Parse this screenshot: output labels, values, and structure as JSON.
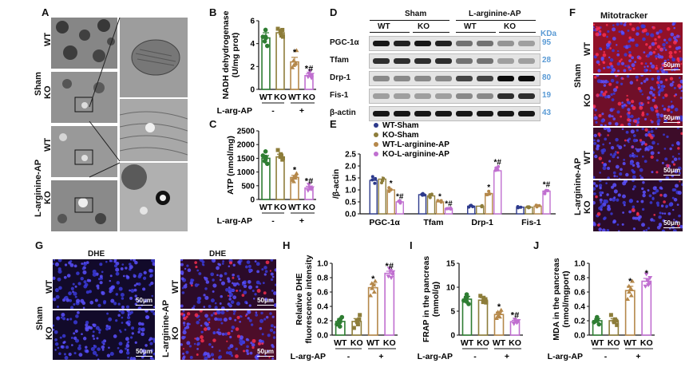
{
  "panel_letters": [
    "A",
    "B",
    "C",
    "D",
    "E",
    "F",
    "G",
    "H",
    "I",
    "J"
  ],
  "panelA": {
    "group_labels": [
      "Sham",
      "L-arginine-AP"
    ],
    "row_labels": [
      "WT",
      "KO",
      "WT",
      "KO"
    ]
  },
  "panelD": {
    "groups": [
      "Sham",
      "L-arginine-AP"
    ],
    "subgroups": [
      "WT",
      "KO",
      "WT",
      "KO"
    ],
    "unit_label": "KDa",
    "bands": [
      {
        "name": "PGC-1α",
        "kda": "95"
      },
      {
        "name": "Tfam",
        "kda": "28"
      },
      {
        "name": "Drp-1",
        "kda": "80"
      },
      {
        "name": "Fis-1",
        "kda": "19"
      },
      {
        "name": "β-actin",
        "kda": "43"
      }
    ]
  },
  "panelF": {
    "title": "Mitotracker",
    "group_labels": [
      "Sham",
      "L-arginine-AP"
    ],
    "row_labels": [
      "WT",
      "KO",
      "WT",
      "KO"
    ],
    "scale": "50μm"
  },
  "panelG": {
    "title_left": "DHE",
    "title_right": "DHE",
    "left_group": "Sham",
    "right_group": "L-arginine-AP",
    "row_labels": [
      "WT",
      "KO",
      "WT",
      "KO"
    ],
    "scale": "50μm"
  },
  "chart_data": [
    {
      "panel": "B",
      "type": "bar",
      "categories": [
        "WT",
        "KO",
        "WT",
        "KO"
      ],
      "values": [
        4.5,
        4.95,
        2.4,
        1.2
      ],
      "errors": [
        0.45,
        0.3,
        0.4,
        0.15
      ],
      "points": [
        [
          5.2,
          3.8,
          4.2,
          4.6,
          4.5,
          4.6
        ],
        [
          5.3,
          4.6,
          5.2,
          4.7,
          4.9,
          5.1
        ],
        [
          3.4,
          1.9,
          2.1,
          2.5,
          2.3,
          2.2
        ],
        [
          1.4,
          1.1,
          1.0,
          1.3,
          1.2,
          1.6
        ]
      ],
      "sig": [
        "",
        "",
        "*",
        "*#"
      ],
      "ylabel": "NADH dehydrogenase (U/mg prot)",
      "yticks": [
        "0",
        "2",
        "4",
        "6"
      ],
      "ylim": [
        0,
        6
      ],
      "xlabel": "L-arg-AP",
      "treatment": [
        "-",
        "+"
      ],
      "colors": [
        "#2e7d32",
        "#8d7d3a",
        "#b5884a",
        "#c06fd0"
      ]
    },
    {
      "panel": "C",
      "type": "bar",
      "categories": [
        "WT",
        "KO",
        "WT",
        "KO"
      ],
      "values": [
        1500,
        1550,
        800,
        420
      ],
      "errors": [
        100,
        100,
        80,
        60
      ],
      "points": [
        [
          1750,
          1300,
          1400,
          1600,
          1550,
          1450
        ],
        [
          1800,
          1500,
          1450,
          1600,
          1650,
          1550
        ],
        [
          950,
          700,
          650,
          800,
          850,
          780
        ],
        [
          550,
          330,
          380,
          420,
          450,
          400
        ]
      ],
      "sig": [
        "",
        "",
        "*",
        "*#"
      ],
      "ylabel": "ATP (nmol/mg)",
      "yticks": [
        "0",
        "500",
        "1000",
        "1500",
        "2000",
        "2500"
      ],
      "ylim": [
        0,
        2500
      ],
      "xlabel": "L-arg-AP",
      "treatment": [
        "-",
        "+"
      ],
      "colors": [
        "#2e7d32",
        "#8d7d3a",
        "#b5884a",
        "#c06fd0"
      ]
    },
    {
      "panel": "E",
      "type": "bar",
      "categories": [
        "PGC-1α",
        "Tfam",
        "Drp-1",
        "Fis-1"
      ],
      "series": [
        {
          "name": "WT-Sham",
          "values": [
            1.4,
            0.8,
            0.32,
            0.28
          ],
          "color": "#2d3a8c"
        },
        {
          "name": "KO-Sham",
          "values": [
            1.45,
            0.75,
            0.32,
            0.28
          ],
          "color": "#8d7d3a"
        },
        {
          "name": "WT-L-arginine-AP",
          "values": [
            1.0,
            0.5,
            0.85,
            0.32
          ],
          "color": "#b5884a"
        },
        {
          "name": "KO-L-arginine-AP",
          "values": [
            0.5,
            0.22,
            1.8,
            0.95
          ],
          "color": "#c06fd0"
        }
      ],
      "sig": [
        [
          "",
          "",
          "*",
          "*#"
        ],
        [
          "",
          "",
          "*",
          "*#"
        ],
        [
          "",
          "",
          "*",
          "*#"
        ],
        [
          "",
          "",
          "",
          "*#"
        ]
      ],
      "ylabel": "/β-actin",
      "yticks": [
        "0.0",
        "0.5",
        "1.0",
        "1.5",
        "2.0",
        "2.5"
      ],
      "ylim": [
        0,
        2.5
      ],
      "legend": "top-left"
    },
    {
      "panel": "H",
      "type": "bar",
      "categories": [
        "WT",
        "KO",
        "WT",
        "KO"
      ],
      "values": [
        0.19,
        0.19,
        0.66,
        0.86
      ],
      "errors": [
        0.04,
        0.04,
        0.05,
        0.03
      ],
      "points": [
        [
          0.12,
          0.25,
          0.2,
          0.15,
          0.22,
          0.18
        ],
        [
          0.1,
          0.28,
          0.22,
          0.15,
          0.18,
          0.2
        ],
        [
          0.75,
          0.55,
          0.65,
          0.72,
          0.6,
          0.7
        ],
        [
          0.93,
          0.82,
          0.85,
          0.88,
          0.8,
          0.9
        ]
      ],
      "sig": [
        "",
        "",
        "*",
        "*#"
      ],
      "ylabel": "Relative DHE fluorescence intensity",
      "yticks": [
        "0.0",
        "0.2",
        "0.4",
        "0.6",
        "0.8",
        "1.0"
      ],
      "ylim": [
        0,
        1.0
      ],
      "xlabel": "L-arg-AP",
      "treatment": [
        "-",
        "+"
      ],
      "colors": [
        "#2e7d32",
        "#8d7d3a",
        "#b5884a",
        "#c06fd0"
      ]
    },
    {
      "panel": "I",
      "type": "bar",
      "categories": [
        "WT",
        "KO",
        "WT",
        "KO"
      ],
      "values": [
        7.5,
        7.3,
        4.3,
        2.8
      ],
      "errors": [
        0.6,
        0.5,
        0.5,
        0.3
      ],
      "points": [
        [
          8.5,
          6.5,
          7.8,
          7.2,
          8.0,
          7.0
        ],
        [
          8.2,
          6.8,
          7.5,
          7.0,
          7.8,
          6.9
        ],
        [
          5.2,
          3.5,
          4.0,
          4.8,
          4.5,
          3.8
        ],
        [
          3.3,
          2.4,
          2.8,
          3.0,
          2.6,
          2.9
        ]
      ],
      "sig": [
        "",
        "",
        "*",
        "*#"
      ],
      "ylabel": "FRAP in the pancreas (mmol/g)",
      "yticks": [
        "0",
        "5",
        "10",
        "15"
      ],
      "ylim": [
        0,
        15
      ],
      "xlabel": "L-arg-AP",
      "treatment": [
        "-",
        "+"
      ],
      "colors": [
        "#2e7d32",
        "#8d7d3a",
        "#b5884a",
        "#c06fd0"
      ]
    },
    {
      "panel": "J",
      "type": "bar",
      "categories": [
        "WT",
        "KO",
        "WT",
        "KO"
      ],
      "values": [
        0.2,
        0.2,
        0.62,
        0.75
      ],
      "errors": [
        0.03,
        0.03,
        0.06,
        0.04
      ],
      "points": [
        [
          0.25,
          0.15,
          0.2,
          0.18,
          0.22,
          0.2
        ],
        [
          0.28,
          0.14,
          0.2,
          0.22,
          0.18,
          0.19
        ],
        [
          0.75,
          0.5,
          0.6,
          0.68,
          0.55,
          0.65
        ],
        [
          0.85,
          0.68,
          0.72,
          0.8,
          0.7,
          0.76
        ]
      ],
      "sig": [
        "",
        "",
        "*",
        "*"
      ],
      "ylabel": "MDA in the pancreas (nmol/mgport)",
      "yticks": [
        "0.0",
        "0.2",
        "0.4",
        "0.6",
        "0.8",
        "1.0"
      ],
      "ylim": [
        0,
        1.0
      ],
      "xlabel": "L-arg-AP",
      "treatment": [
        "-",
        "+"
      ],
      "colors": [
        "#2e7d32",
        "#8d7d3a",
        "#b5884a",
        "#c06fd0"
      ]
    }
  ]
}
